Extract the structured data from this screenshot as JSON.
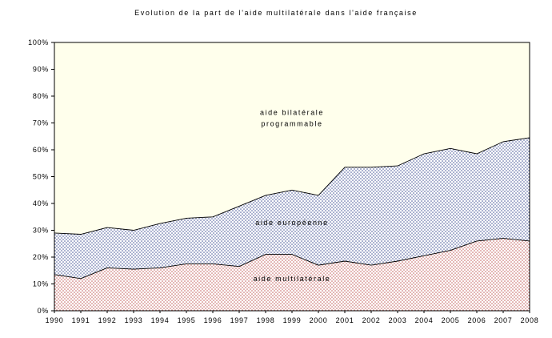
{
  "title": "Evolution de la part de l'aide multilatérale dans l'aide française",
  "chart_data": {
    "type": "area",
    "stacked": true,
    "title": "Evolution de la part de l'aide multilatérale dans l'aide française",
    "xlabel": "",
    "ylabel": "",
    "ylim": [
      0,
      100
    ],
    "grid": false,
    "legend_position": "none",
    "x": [
      1990,
      1991,
      1992,
      1993,
      1994,
      1995,
      1996,
      1997,
      1998,
      1999,
      2000,
      2001,
      2002,
      2003,
      2004,
      2005,
      2006,
      2007,
      2008
    ],
    "y_ticks": [
      "0%",
      "10%",
      "20%",
      "30%",
      "40%",
      "50%",
      "60%",
      "70%",
      "80%",
      "90%",
      "100%"
    ],
    "series": [
      {
        "name": "aide multilatérale",
        "values": [
          13.5,
          12,
          16,
          15.5,
          16,
          17.5,
          17.5,
          16.5,
          21,
          21,
          17,
          18.5,
          17,
          18.5,
          20.5,
          22.5,
          26,
          27,
          26
        ]
      },
      {
        "name": "aide européenne",
        "values": [
          15.5,
          16.5,
          15,
          14.5,
          16.5,
          17,
          17.5,
          22.5,
          22,
          24,
          26,
          35,
          36.5,
          35.5,
          38,
          38,
          32.5,
          36,
          38.5
        ]
      },
      {
        "name": "aide bilatérale programmable",
        "values": [
          71,
          71.5,
          69,
          70,
          67.5,
          65.5,
          65,
          61,
          57,
          55,
          57,
          46.5,
          46.5,
          46,
          41.5,
          39.5,
          41.5,
          37,
          35.5
        ]
      }
    ],
    "annotations": [
      {
        "lines": [
          "aide bilatérale",
          "programmable"
        ],
        "x": 1999,
        "y": 73
      },
      {
        "lines": [
          "aide européenne"
        ],
        "x": 1999,
        "y": 32
      },
      {
        "lines": [
          "aide multilatérale"
        ],
        "x": 1999,
        "y": 11
      }
    ],
    "colors": {
      "multilaterale_dot": "#c4625f",
      "europeenne_dot": "#4a5a9a",
      "bilaterale_fill": "#ffffec",
      "line": "#000000",
      "axis": "#000000"
    }
  }
}
